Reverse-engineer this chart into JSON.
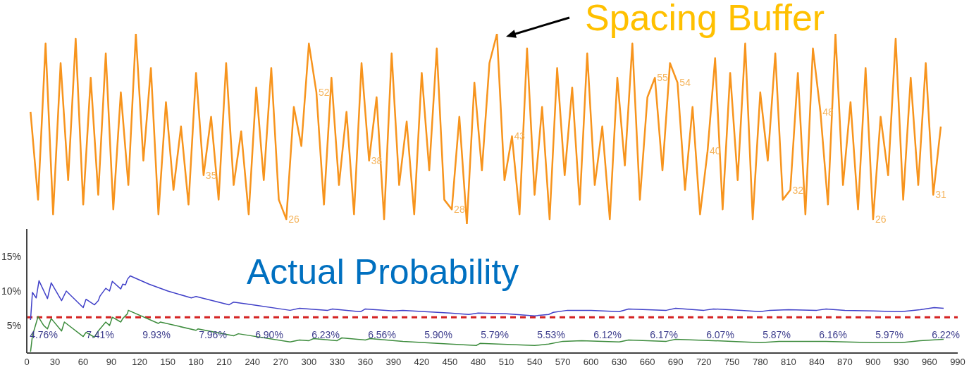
{
  "chart_data": [
    {
      "type": "line",
      "title": "Spacing Buffer",
      "xlim": [
        0,
        990
      ],
      "tick_labels": false,
      "marker": "none",
      "line_style": "solid",
      "series": [
        {
          "color": "#f7941d",
          "x": [
            4,
            12,
            20,
            28,
            36,
            44,
            52,
            60,
            68,
            76,
            84,
            92,
            100,
            108,
            116,
            124,
            132,
            140,
            148,
            156,
            164,
            172,
            180,
            188,
            196,
            204,
            212,
            220,
            228,
            236,
            244,
            252,
            260,
            268,
            276,
            284,
            292,
            300,
            308,
            316,
            324,
            332,
            340,
            348,
            356,
            364,
            372,
            380,
            388,
            396,
            404,
            412,
            420,
            428,
            436,
            444,
            452,
            460,
            468,
            476,
            484,
            492,
            500,
            508,
            516,
            524,
            532,
            540,
            548,
            556,
            564,
            572,
            580,
            588,
            596,
            604,
            612,
            620,
            628,
            636,
            644,
            652,
            660,
            668,
            676,
            684,
            692,
            700,
            708,
            716,
            724,
            732,
            740,
            748,
            756,
            764,
            772,
            780,
            788,
            796,
            804,
            812,
            820,
            828,
            836,
            844,
            852,
            860,
            868,
            876,
            884,
            892,
            900,
            908,
            916,
            924,
            932,
            940,
            948,
            956,
            964,
            972
          ],
          "values": [
            48,
            30,
            62,
            27,
            58,
            34,
            63,
            29,
            55,
            31,
            60,
            28,
            52,
            33,
            64,
            38,
            57,
            27,
            50,
            32,
            45,
            29,
            56,
            35,
            47,
            30,
            58,
            33,
            44,
            27,
            53,
            34,
            57,
            30,
            26,
            49,
            41,
            62,
            52,
            29,
            55,
            33,
            48,
            27,
            58,
            38,
            51,
            26,
            60,
            33,
            46,
            27,
            56,
            36,
            61,
            30,
            28,
            47,
            25,
            54,
            36,
            58,
            64,
            34,
            43,
            27,
            61,
            31,
            49,
            26,
            57,
            35,
            53,
            29,
            60,
            33,
            45,
            26,
            55,
            37,
            62,
            30,
            51,
            55,
            36,
            58,
            54,
            32,
            49,
            27,
            40,
            59,
            28,
            56,
            34,
            62,
            26,
            52,
            38,
            60,
            30,
            32,
            56,
            27,
            61,
            48,
            29,
            64,
            33,
            50,
            28,
            57,
            26,
            47,
            35,
            63,
            30,
            55,
            33,
            58,
            31,
            45
          ],
          "value_labels": [
            null,
            null,
            null,
            null,
            null,
            null,
            null,
            null,
            null,
            null,
            null,
            null,
            null,
            null,
            null,
            null,
            null,
            null,
            null,
            null,
            null,
            null,
            null,
            "35",
            null,
            null,
            null,
            null,
            null,
            null,
            null,
            null,
            null,
            null,
            "26",
            null,
            null,
            null,
            "52",
            null,
            null,
            null,
            null,
            null,
            null,
            "38",
            null,
            null,
            null,
            null,
            null,
            null,
            null,
            null,
            null,
            null,
            "28",
            null,
            null,
            null,
            null,
            null,
            null,
            null,
            "43",
            null,
            null,
            null,
            null,
            null,
            null,
            null,
            null,
            null,
            null,
            null,
            null,
            null,
            null,
            null,
            null,
            null,
            null,
            "55",
            null,
            null,
            "54",
            null,
            null,
            null,
            "40",
            null,
            null,
            null,
            null,
            null,
            null,
            null,
            null,
            null,
            null,
            "32",
            null,
            null,
            null,
            "48",
            null,
            null,
            null,
            null,
            null,
            null,
            "26",
            null,
            null,
            null,
            null,
            null,
            null,
            null,
            "31",
            null
          ]
        }
      ]
    },
    {
      "type": "line",
      "title": "Actual Probability",
      "xlim": [
        0,
        990
      ],
      "xticks": [
        0,
        30,
        60,
        90,
        120,
        150,
        180,
        210,
        240,
        270,
        300,
        330,
        360,
        390,
        420,
        450,
        480,
        510,
        540,
        570,
        600,
        630,
        660,
        690,
        720,
        750,
        780,
        810,
        840,
        870,
        900,
        930,
        960,
        990
      ],
      "ylim": [
        1,
        19
      ],
      "yticks": [
        {
          "value": 5,
          "label": "5%"
        },
        {
          "value": 10,
          "label": "10%"
        },
        {
          "value": 15,
          "label": "15%"
        }
      ],
      "tick_labels": true,
      "marker": "none",
      "line_style": "solid",
      "series": [
        {
          "color": "#4040c8",
          "x": [
            4,
            6,
            10,
            13,
            22,
            26,
            37,
            42,
            60,
            63,
            72,
            76,
            78,
            84,
            88,
            91,
            100,
            102,
            105,
            107,
            110,
            130,
            150,
            175,
            180,
            215,
            220,
            240,
            280,
            290,
            320,
            325,
            355,
            360,
            390,
            400,
            450,
            470,
            480,
            510,
            540,
            555,
            560,
            575,
            600,
            630,
            640,
            660,
            680,
            690,
            720,
            730,
            760,
            780,
            790,
            810,
            840,
            850,
            870,
            900,
            930,
            950,
            965,
            975
          ],
          "values": [
            5.8,
            9.8,
            9.0,
            11.5,
            8.9,
            11.2,
            8.6,
            10.0,
            7.6,
            8.8,
            8.0,
            8.6,
            9.3,
            10.4,
            10.0,
            11.4,
            10.3,
            11.0,
            10.9,
            11.7,
            12.2,
            11.0,
            10.0,
            9.0,
            9.2,
            8.0,
            8.4,
            8.0,
            7.2,
            7.5,
            7.2,
            7.4,
            7.0,
            7.4,
            7.1,
            7.2,
            6.8,
            6.6,
            6.8,
            6.7,
            6.4,
            6.6,
            6.9,
            7.2,
            7.2,
            7.0,
            7.4,
            7.3,
            7.2,
            7.5,
            7.2,
            7.4,
            7.2,
            7.0,
            7.2,
            7.3,
            7.2,
            7.4,
            7.2,
            7.1,
            7.0,
            7.3,
            7.6,
            7.5
          ]
        },
        {
          "color": "#3d8c3d",
          "x": [
            4,
            6,
            12,
            18,
            22,
            26,
            37,
            40,
            60,
            63,
            72,
            76,
            84,
            88,
            91,
            100,
            102,
            107,
            108,
            140,
            142,
            180,
            182,
            220,
            225,
            280,
            290,
            300,
            305,
            330,
            335,
            360,
            365,
            400,
            450,
            478,
            482,
            540,
            555,
            570,
            590,
            630,
            640,
            680,
            690,
            730,
            780,
            800,
            850,
            900,
            930,
            950,
            975
          ],
          "values": [
            1.2,
            3.5,
            6.3,
            5.0,
            4.5,
            6.0,
            4.2,
            5.5,
            3.4,
            4.0,
            3.3,
            4.2,
            5.5,
            5.0,
            6.2,
            5.5,
            6.0,
            6.7,
            7.2,
            5.3,
            5.5,
            4.3,
            4.5,
            3.5,
            3.8,
            2.6,
            2.9,
            2.8,
            3.1,
            2.8,
            3.2,
            2.9,
            3.1,
            2.7,
            2.3,
            2.1,
            2.4,
            2.1,
            2.3,
            2.7,
            2.8,
            2.6,
            2.9,
            2.7,
            3.0,
            2.8,
            2.5,
            2.7,
            2.7,
            2.5,
            2.5,
            2.8,
            3.0
          ]
        }
      ],
      "ref_lines": [
        {
          "axis": "y",
          "value": 6.2,
          "color": "#d42020",
          "line_style": "dashed"
        }
      ],
      "annotations": [
        "4.76%",
        "7.41%",
        "9.93%",
        "7.96%",
        "6.90%",
        "6.23%",
        "6.56%",
        "5.90%",
        "5.79%",
        "5.53%",
        "6.12%",
        "6.17%",
        "6.07%",
        "5.87%",
        "6.16%",
        "5.97%",
        "6.22%"
      ]
    }
  ]
}
